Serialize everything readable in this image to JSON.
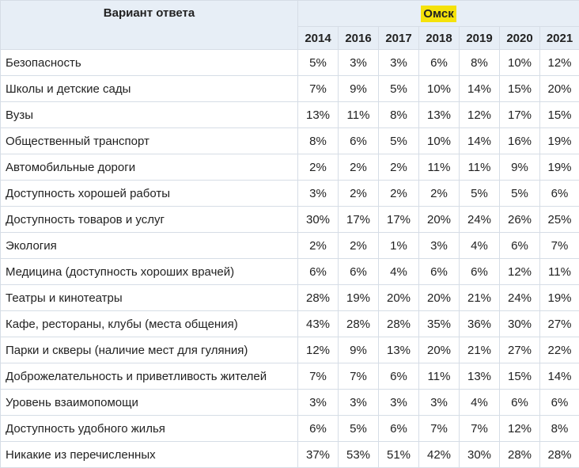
{
  "chart_data": {
    "type": "table",
    "header": {
      "answer_col": "Вариант ответа",
      "city": "Омск",
      "years": [
        "2014",
        "2016",
        "2017",
        "2018",
        "2019",
        "2020",
        "2021"
      ]
    },
    "rows": [
      {
        "label": "Безопасность",
        "values": [
          "5%",
          "3%",
          "3%",
          "6%",
          "8%",
          "10%",
          "12%"
        ]
      },
      {
        "label": "Школы и детские сады",
        "values": [
          "7%",
          "9%",
          "5%",
          "10%",
          "14%",
          "15%",
          "20%"
        ]
      },
      {
        "label": "Вузы",
        "values": [
          "13%",
          "11%",
          "8%",
          "13%",
          "12%",
          "17%",
          "15%"
        ]
      },
      {
        "label": "Общественный транспорт",
        "values": [
          "8%",
          "6%",
          "5%",
          "10%",
          "14%",
          "16%",
          "19%"
        ]
      },
      {
        "label": "Автомобильные дороги",
        "values": [
          "2%",
          "2%",
          "2%",
          "11%",
          "11%",
          "9%",
          "19%"
        ]
      },
      {
        "label": "Доступность хорошей работы",
        "values": [
          "3%",
          "2%",
          "2%",
          "2%",
          "5%",
          "5%",
          "6%"
        ]
      },
      {
        "label": "Доступность товаров и услуг",
        "values": [
          "30%",
          "17%",
          "17%",
          "20%",
          "24%",
          "26%",
          "25%"
        ]
      },
      {
        "label": "Экология",
        "values": [
          "2%",
          "2%",
          "1%",
          "3%",
          "4%",
          "6%",
          "7%"
        ]
      },
      {
        "label": "Медицина (доступность хороших врачей)",
        "values": [
          "6%",
          "6%",
          "4%",
          "6%",
          "6%",
          "12%",
          "11%"
        ]
      },
      {
        "label": "Театры и кинотеатры",
        "values": [
          "28%",
          "19%",
          "20%",
          "20%",
          "21%",
          "24%",
          "19%"
        ]
      },
      {
        "label": "Кафе, рестораны, клубы (места общения)",
        "values": [
          "43%",
          "28%",
          "28%",
          "35%",
          "36%",
          "30%",
          "27%"
        ]
      },
      {
        "label": "Парки и скверы (наличие мест для гуляния)",
        "values": [
          "12%",
          "9%",
          "13%",
          "20%",
          "21%",
          "27%",
          "22%"
        ]
      },
      {
        "label": "Доброжелательность и приветливость жителей",
        "values": [
          "7%",
          "7%",
          "6%",
          "11%",
          "13%",
          "15%",
          "14%"
        ]
      },
      {
        "label": "Уровень взаимопомощи",
        "values": [
          "3%",
          "3%",
          "3%",
          "3%",
          "4%",
          "6%",
          "6%"
        ]
      },
      {
        "label": "Доступность удобного жилья",
        "values": [
          "6%",
          "5%",
          "6%",
          "7%",
          "7%",
          "12%",
          "8%"
        ]
      },
      {
        "label": "Никакие из перечисленных",
        "values": [
          "37%",
          "53%",
          "51%",
          "42%",
          "30%",
          "28%",
          "28%"
        ]
      }
    ]
  },
  "colors": {
    "header_bg": "#e7eef6",
    "city_highlight": "#f5e20a",
    "border": "#d6dde6"
  }
}
